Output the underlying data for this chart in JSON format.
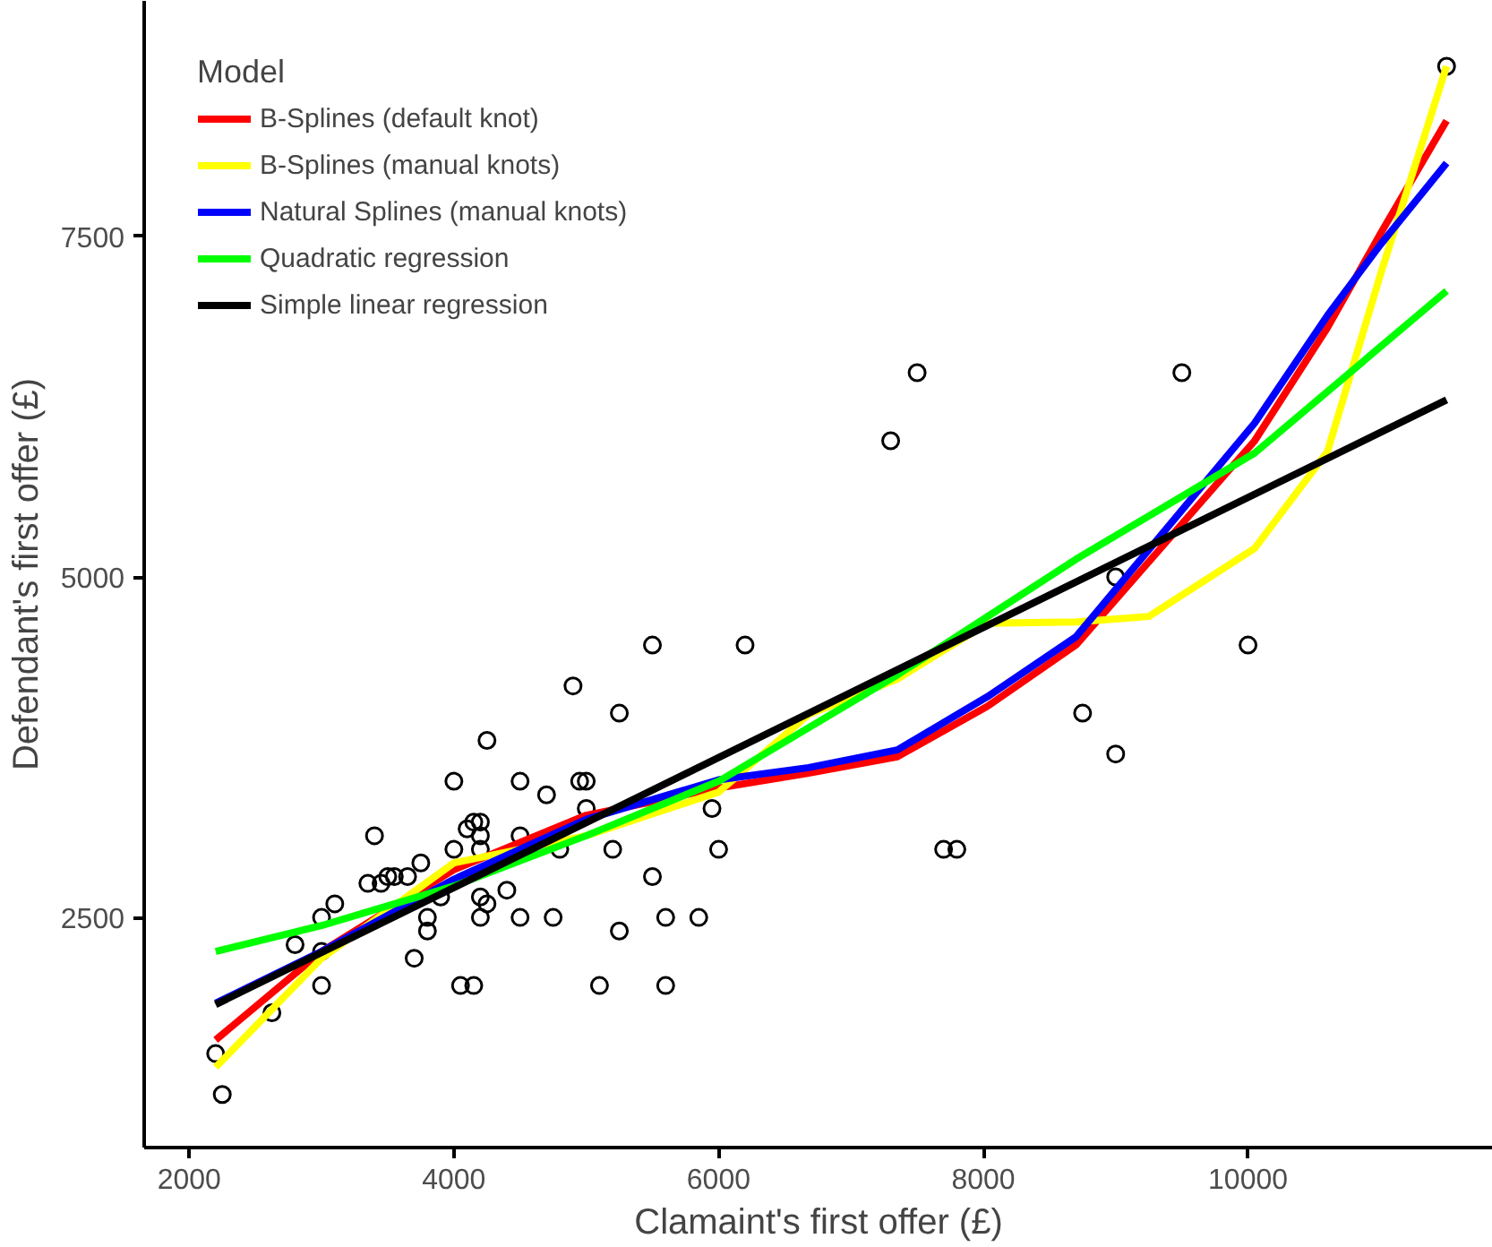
{
  "chart_data": {
    "type": "scatter",
    "xlabel": "Clamaint's first offer (£)",
    "ylabel": "Defendant's first offer (£)",
    "legend_title": "Model",
    "xlim": [
      1660,
      11850
    ],
    "ylim": [
      810,
      9230
    ],
    "xticks": [
      2000,
      4000,
      6000,
      8000,
      10000
    ],
    "yticks": [
      2500,
      5000,
      7500
    ],
    "grid": false,
    "legend": "top left",
    "series": [
      {
        "marker": "circle",
        "color": "#000000",
        "x": [
          2200,
          2250,
          2625,
          2800,
          3000,
          3000,
          3000,
          3100,
          3400,
          3350,
          3500,
          3550,
          3450,
          3650,
          3750,
          3700,
          3800,
          3800,
          3900,
          4000,
          4000,
          4050,
          4150,
          4200,
          4250,
          4200,
          4250,
          4100,
          4150,
          4200,
          4200,
          4200,
          4400,
          4500,
          4500,
          4500,
          4700,
          5500,
          6200,
          4900,
          5250,
          4950,
          5000,
          5000,
          5950,
          5200,
          6000,
          5500,
          4750,
          5600,
          5850,
          5250,
          5100,
          5600,
          4800,
          7500,
          9500,
          7300,
          9000,
          10000,
          8750,
          9000,
          7700,
          7800,
          11500
        ],
        "values": [
          1500,
          1200,
          1800,
          2300,
          2000,
          2250,
          2500,
          2600,
          3100,
          2750,
          2800,
          2800,
          2750,
          2800,
          2900,
          2200,
          2500,
          2400,
          2650,
          3500,
          3000,
          2000,
          2000,
          2500,
          2600,
          2650,
          3800,
          3150,
          3200,
          3200,
          3100,
          3000,
          2700,
          2500,
          3500,
          3100,
          3400,
          4500,
          4500,
          4200,
          4000,
          3500,
          3500,
          3300,
          3300,
          3000,
          3000,
          2800,
          2500,
          2500,
          2500,
          2400,
          2000,
          2000,
          3000,
          6500,
          6500,
          6000,
          5000,
          4500,
          4000,
          3700,
          3000,
          3000,
          8750
        ]
      },
      {
        "type": "line",
        "name": "B-Splines (default knot)",
        "color": "#ff0000",
        "x": [
          2200,
          3000,
          4000,
          5000,
          6000,
          6680,
          7350,
          8030,
          8700,
          10050,
          10600,
          11000,
          11500
        ],
        "values": [
          1600,
          2250,
          2850,
          3250,
          3450,
          3560,
          3680,
          4050,
          4500,
          6000,
          6830,
          7520,
          8350
        ]
      },
      {
        "type": "line",
        "name": "B-Splines (manual knots)",
        "color": "#ffff00",
        "x": [
          2200,
          3000,
          4000,
          5000,
          6000,
          6680,
          7350,
          8030,
          8700,
          9250,
          10050,
          10600,
          11000,
          11500
        ],
        "values": [
          1400,
          2200,
          2900,
          3100,
          3420,
          3990,
          4250,
          4660,
          4670,
          4710,
          5210,
          5920,
          7220,
          8750
        ]
      },
      {
        "type": "line",
        "name": "Natural Splines (manual knots)",
        "color": "#0000ff",
        "x": [
          2200,
          3000,
          4000,
          5000,
          6000,
          6680,
          7350,
          8030,
          8700,
          10050,
          10600,
          11000,
          11500
        ],
        "values": [
          1870,
          2250,
          2780,
          3220,
          3510,
          3600,
          3730,
          4120,
          4560,
          6130,
          6920,
          7440,
          8040
        ]
      },
      {
        "type": "line",
        "name": "Quadratic regression",
        "color": "#00ff00",
        "x": [
          2200,
          3000,
          4000,
          5000,
          6000,
          7350,
          8700,
          10050,
          11500
        ],
        "values": [
          2250,
          2440,
          2730,
          3100,
          3500,
          4280,
          5130,
          5910,
          7100
        ]
      },
      {
        "type": "line",
        "name": "Simple linear regression",
        "color": "#000000",
        "x": [
          2200,
          11500
        ],
        "values": [
          1860,
          6300
        ]
      }
    ]
  }
}
